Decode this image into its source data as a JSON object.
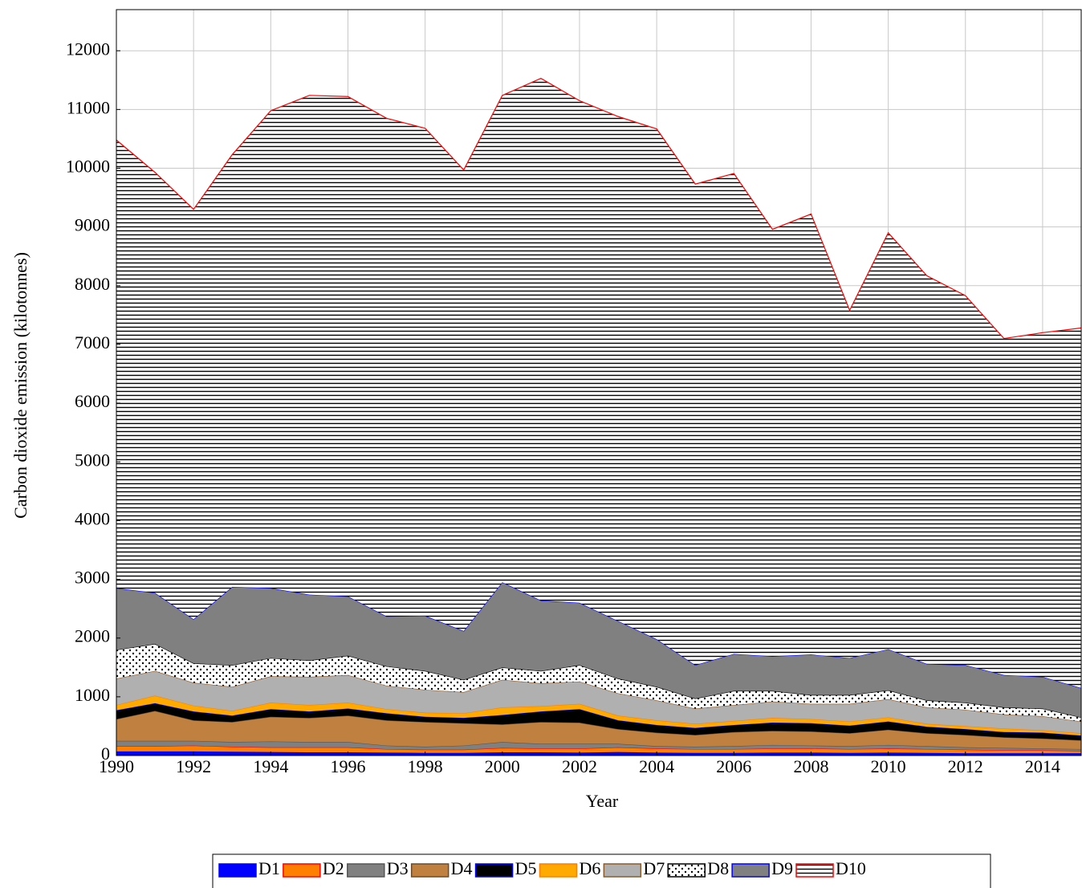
{
  "chart_data": {
    "type": "stacked_area",
    "x_label": "Year",
    "y_label": "Carbon dioxide emission (kilotonnes)",
    "x": [
      1990,
      1991,
      1992,
      1993,
      1994,
      1995,
      1996,
      1997,
      1998,
      1999,
      2000,
      2001,
      2002,
      2003,
      2004,
      2005,
      2006,
      2007,
      2008,
      2009,
      2010,
      2011,
      2012,
      2013,
      2014,
      2015
    ],
    "xlim": [
      1990,
      2015
    ],
    "xticks": [
      1990,
      1992,
      1994,
      1996,
      1998,
      2000,
      2002,
      2004,
      2006,
      2008,
      2010,
      2012,
      2014
    ],
    "ylim": [
      0,
      12700
    ],
    "yticks": [
      0,
      1000,
      2000,
      3000,
      4000,
      5000,
      6000,
      7000,
      8000,
      9000,
      10000,
      11000,
      12000
    ],
    "grid": true,
    "legend": "bottom",
    "series": [
      {
        "name": "D1",
        "color": "#0000ff",
        "edge": "#0000ff",
        "values": [
          70,
          70,
          70,
          65,
          60,
          55,
          55,
          50,
          45,
          45,
          55,
          55,
          50,
          60,
          50,
          45,
          45,
          50,
          50,
          45,
          50,
          45,
          40,
          40,
          40,
          40
        ]
      },
      {
        "name": "D2",
        "color": "#ff7f00",
        "edge": "#ff0000",
        "values": [
          90,
          90,
          100,
          85,
          80,
          85,
          85,
          60,
          55,
          55,
          75,
          65,
          70,
          80,
          70,
          65,
          65,
          70,
          70,
          65,
          70,
          65,
          60,
          50,
          50,
          40
        ]
      },
      {
        "name": "D3",
        "color": "#808080",
        "edge": "#555555",
        "values": [
          90,
          90,
          80,
          80,
          100,
          90,
          90,
          60,
          50,
          70,
          100,
          80,
          80,
          60,
          40,
          40,
          50,
          60,
          50,
          50,
          60,
          50,
          40,
          40,
          30,
          30
        ]
      },
      {
        "name": "D4",
        "color": "#bf8040",
        "edge": "#6b4a2a",
        "values": [
          370,
          510,
          350,
          340,
          420,
          410,
          450,
          430,
          420,
          380,
          300,
          370,
          360,
          250,
          230,
          200,
          240,
          240,
          240,
          220,
          260,
          220,
          210,
          180,
          170,
          150
        ]
      },
      {
        "name": "D5",
        "color": "#000000",
        "edge": "#0000ff",
        "values": [
          150,
          130,
          150,
          110,
          130,
          110,
          120,
          120,
          90,
          90,
          160,
          180,
          230,
          150,
          130,
          120,
          120,
          140,
          140,
          130,
          140,
          110,
          100,
          90,
          100,
          80
        ]
      },
      {
        "name": "D6",
        "color": "#ffaa00",
        "edge": "#ff7f00",
        "values": [
          90,
          130,
          100,
          80,
          110,
          110,
          100,
          70,
          70,
          80,
          130,
          90,
          90,
          80,
          80,
          70,
          70,
          80,
          70,
          70,
          70,
          50,
          50,
          60,
          40,
          40
        ]
      },
      {
        "name": "D7",
        "color": "#b0b0b0",
        "edge": "#8b5a2b",
        "values": [
          450,
          420,
          390,
          410,
          450,
          480,
          470,
          400,
          390,
          360,
          470,
          390,
          380,
          380,
          340,
          260,
          270,
          280,
          260,
          300,
          310,
          280,
          280,
          240,
          240,
          200
        ]
      },
      {
        "name": "D8",
        "color": "#ffffff",
        "edge": "#000000",
        "pattern": "dots",
        "values": [
          490,
          460,
          330,
          370,
          310,
          280,
          330,
          330,
          320,
          210,
          210,
          210,
          280,
          250,
          230,
          170,
          240,
          180,
          150,
          150,
          150,
          120,
          120,
          120,
          130,
          70
        ]
      },
      {
        "name": "D9",
        "color": "#808080",
        "edge": "#0000ff",
        "values": [
          1050,
          870,
          750,
          1330,
          1190,
          1120,
          1010,
          850,
          940,
          830,
          1450,
          1200,
          1060,
          980,
          810,
          570,
          630,
          590,
          690,
          630,
          700,
          620,
          640,
          550,
          540,
          500
        ]
      },
      {
        "name": "D10",
        "color": "#ffffff",
        "edge": "#ff0000",
        "pattern": "hlines",
        "values": [
          7630,
          7160,
          6980,
          7360,
          8130,
          8500,
          8510,
          8480,
          8300,
          7850,
          8290,
          8890,
          8550,
          8590,
          8690,
          8190,
          8180,
          7270,
          7500,
          5920,
          7090,
          6610,
          6290,
          5730,
          5860,
          6130
        ]
      }
    ]
  }
}
